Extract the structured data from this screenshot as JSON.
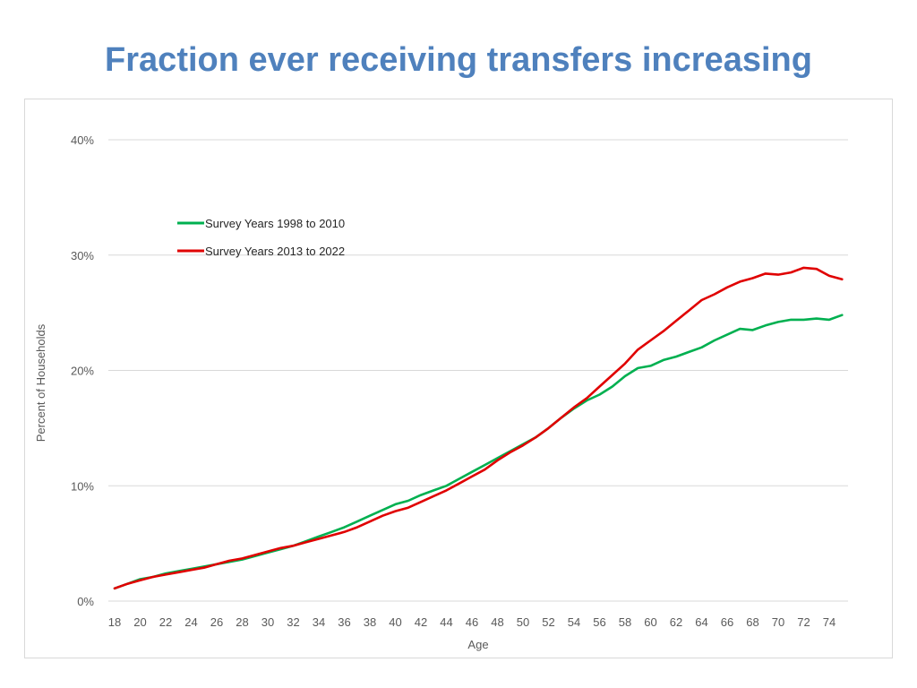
{
  "slide": {
    "title": "Fraction ever receiving transfers increasing"
  },
  "chart_data": {
    "type": "line",
    "xlabel": "Age",
    "ylabel": "Percent of Households",
    "xlim": [
      18,
      75
    ],
    "ylim": [
      0,
      40
    ],
    "y_ticks": [
      "0%",
      "10%",
      "20%",
      "30%",
      "40%"
    ],
    "y_tick_values": [
      0,
      10,
      20,
      30,
      40
    ],
    "x_ticks": [
      18,
      20,
      22,
      24,
      26,
      28,
      30,
      32,
      34,
      36,
      38,
      40,
      42,
      44,
      46,
      48,
      50,
      52,
      54,
      56,
      58,
      60,
      62,
      64,
      66,
      68,
      70,
      72,
      74
    ],
    "grid": true,
    "legend": "upper-left",
    "x": [
      18,
      19,
      20,
      21,
      22,
      23,
      24,
      25,
      26,
      27,
      28,
      29,
      30,
      31,
      32,
      33,
      34,
      35,
      36,
      37,
      38,
      39,
      40,
      41,
      42,
      43,
      44,
      45,
      46,
      47,
      48,
      49,
      50,
      51,
      52,
      53,
      54,
      55,
      56,
      57,
      58,
      59,
      60,
      61,
      62,
      63,
      64,
      65,
      66,
      67,
      68,
      69,
      70,
      71,
      72,
      73,
      74,
      75
    ],
    "series": [
      {
        "name": "Survey Years 1998 to 2010",
        "color": "#00b050",
        "values": [
          1.1,
          1.5,
          1.9,
          2.1,
          2.4,
          2.6,
          2.8,
          3.0,
          3.2,
          3.4,
          3.6,
          3.9,
          4.2,
          4.5,
          4.8,
          5.2,
          5.6,
          6.0,
          6.4,
          6.9,
          7.4,
          7.9,
          8.4,
          8.7,
          9.2,
          9.6,
          10.0,
          10.6,
          11.2,
          11.8,
          12.4,
          13.0,
          13.6,
          14.2,
          15.0,
          15.9,
          16.7,
          17.4,
          17.9,
          18.6,
          19.5,
          20.2,
          20.4,
          20.9,
          21.2,
          21.6,
          22.0,
          22.6,
          23.1,
          23.6,
          23.5,
          23.9,
          24.2,
          24.4,
          24.4,
          24.5,
          24.4,
          24.8
        ]
      },
      {
        "name": "Survey Years 2013 to 2022",
        "color": "#e00000",
        "values": [
          1.1,
          1.5,
          1.8,
          2.1,
          2.3,
          2.5,
          2.7,
          2.9,
          3.2,
          3.5,
          3.7,
          4.0,
          4.3,
          4.6,
          4.8,
          5.1,
          5.4,
          5.7,
          6.0,
          6.4,
          6.9,
          7.4,
          7.8,
          8.1,
          8.6,
          9.1,
          9.6,
          10.2,
          10.8,
          11.4,
          12.2,
          12.9,
          13.5,
          14.2,
          15.0,
          15.9,
          16.8,
          17.6,
          18.6,
          19.6,
          20.6,
          21.8,
          22.6,
          23.4,
          24.3,
          25.2,
          26.1,
          26.6,
          27.2,
          27.7,
          28.0,
          28.4,
          28.3,
          28.5,
          28.9,
          28.8,
          28.2,
          27.9
        ]
      }
    ]
  }
}
